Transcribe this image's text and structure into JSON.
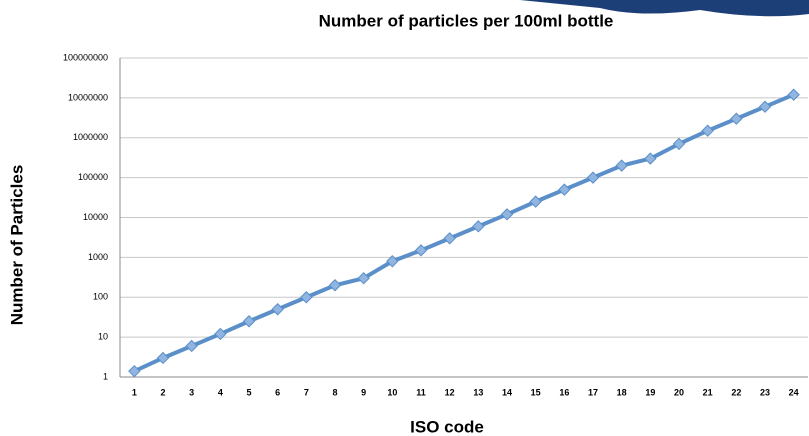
{
  "chart_data": {
    "type": "line",
    "title": "Number of particles per 100ml bottle",
    "x_label": "ISO code",
    "y_label": "Number of Particles",
    "categories": [
      "1",
      "2",
      "3",
      "4",
      "5",
      "6",
      "7",
      "8",
      "9",
      "10",
      "11",
      "12",
      "13",
      "14",
      "15",
      "16",
      "17",
      "18",
      "19",
      "20",
      "21",
      "22",
      "23",
      "24"
    ],
    "series": [
      {
        "color": "#5b8fc9",
        "marker_color": "#8fb5e0",
        "values": [
          1.4,
          3,
          6,
          12,
          25,
          50,
          100,
          200,
          300,
          800,
          1500,
          3000,
          6000,
          12000,
          25000,
          50000,
          100000,
          200000,
          300000,
          700000,
          1500000,
          3000000,
          6000000,
          12000000
        ]
      }
    ],
    "ylim": [
      1,
      100000000
    ],
    "yticks": [
      1,
      10,
      100,
      1000,
      10000,
      100000,
      1000000,
      10000000,
      100000000
    ],
    "log_scale": true,
    "grid": true
  }
}
